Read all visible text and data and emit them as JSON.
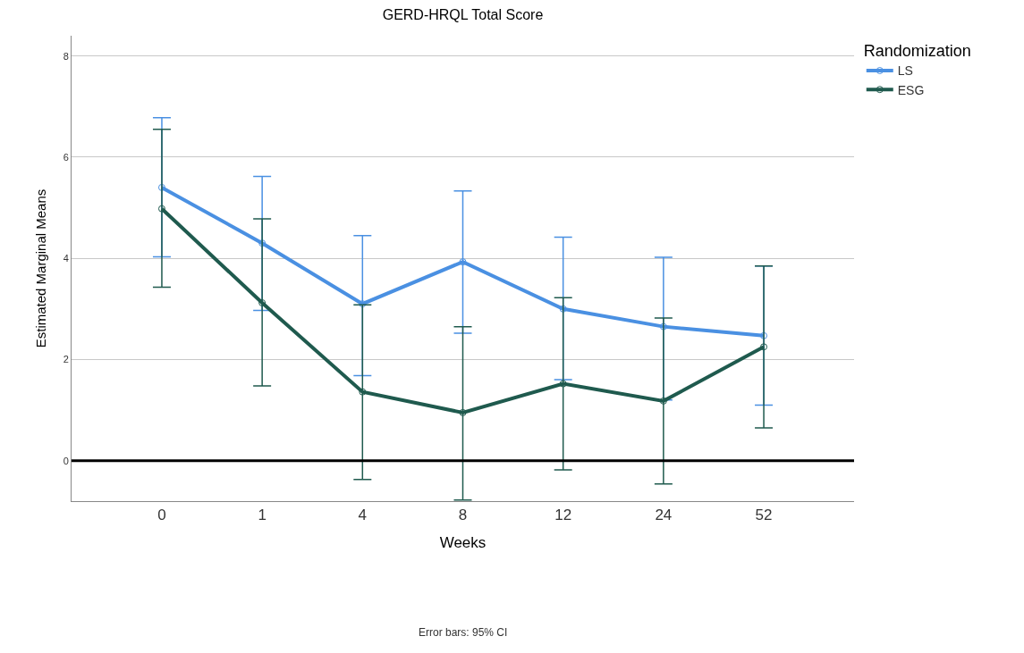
{
  "chart_data": {
    "type": "line",
    "title": "GERD-HRQL Total Score",
    "xlabel": "Weeks",
    "ylabel": "Estimated Marginal Means",
    "legend_title": "Randomization",
    "categories": [
      "0",
      "1",
      "4",
      "8",
      "12",
      "24",
      "52"
    ],
    "series": [
      {
        "name": "LS",
        "color": "#4a90e2",
        "values": [
          5.4,
          4.3,
          3.1,
          3.93,
          3.0,
          2.65,
          2.47
        ],
        "errors": [
          [
            4.03,
            6.78
          ],
          [
            2.97,
            5.62
          ],
          [
            1.68,
            4.45
          ],
          [
            2.52,
            5.33
          ],
          [
            1.6,
            4.42
          ],
          [
            1.2,
            4.02
          ],
          [
            1.1,
            3.85
          ]
        ]
      },
      {
        "name": "ESG",
        "color": "#1f5a4e",
        "values": [
          4.98,
          3.12,
          1.36,
          0.95,
          1.52,
          1.18,
          2.25
        ],
        "errors": [
          [
            3.43,
            6.55
          ],
          [
            1.48,
            4.78
          ],
          [
            -0.37,
            3.08
          ],
          [
            -0.78,
            2.65
          ],
          [
            -0.18,
            3.22
          ],
          [
            -0.46,
            2.82
          ],
          [
            0.65,
            3.85
          ]
        ]
      }
    ],
    "ylim": [
      -0.8,
      8.4
    ],
    "yticks": [
      0,
      2,
      4,
      6,
      8
    ],
    "grid": "y",
    "legend": "top right",
    "marker": "circle",
    "line_style": "solid",
    "ref_lines": [
      {
        "axis": "y",
        "value": 0,
        "color": "#000000"
      }
    ],
    "annotations": [
      "Error bars: 95% CI"
    ]
  }
}
